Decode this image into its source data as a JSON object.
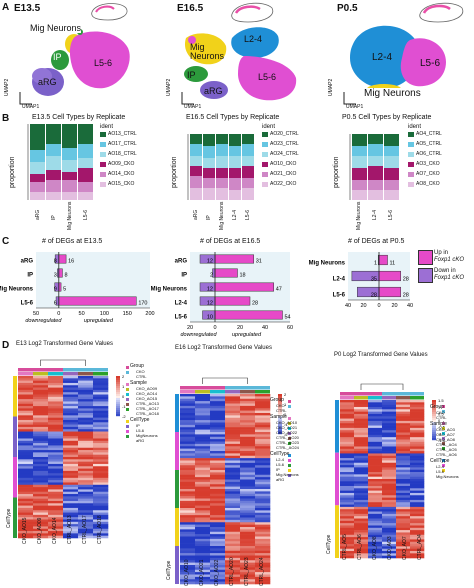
{
  "panel_labels": {
    "a": "A",
    "b": "B",
    "c": "C",
    "d": "D"
  },
  "colors": {
    "aRG": "#7b61c9",
    "IP": "#2c9a3c",
    "L2-4": "#1f8fd6",
    "L5-6": "#e04fd2",
    "Mig": "#f1d21a",
    "mock": "#c9a0e0",
    "CTRL": "#5bb8d9",
    "CKO": "#d74c9b",
    "rep_ctrl_1": "#1a6b3a",
    "rep_ctrl_2": "#66c6e2",
    "rep_ctrl_3": "#9edbe8",
    "rep_cko_1": "#a3176b",
    "rep_cko_2": "#cf87c6",
    "rep_cko_3": "#e3bfe0",
    "bar_pink": "#e64ac8",
    "bar_purple": "#9c6fd4",
    "bar_lightblue": "#e8f3f8"
  },
  "umap": {
    "e135": {
      "title": "E13.5",
      "labels": [
        "Mig Neurons",
        "IP",
        "aRG",
        "L5-6"
      ],
      "axis_y": "UMAP2",
      "axis_x": "UMAP1"
    },
    "e165": {
      "title": "E16.5",
      "labels": [
        "Mig Neurons",
        "L2-4",
        "L5-6",
        "IP",
        "aRG"
      ],
      "axis_y": "UMAP2",
      "axis_x": "UMAP1"
    },
    "p05": {
      "title": "P0.5",
      "labels": [
        "L2-4",
        "L5-6",
        "Mig Neurons"
      ],
      "axis_y": "UMAP2",
      "axis_x": "UMAP1"
    }
  },
  "proportion": {
    "e135": {
      "title": "E13.5 Cell Types by Replicate",
      "ylabel": "proportion",
      "legend_title": "ident",
      "legend": [
        "AO13_CTRL",
        "AO17_CTRL",
        "AO18_CTRL",
        "AO09_CKO",
        "AO14_CKO",
        "AO15_CKO"
      ],
      "categories": [
        "aRG",
        "IP",
        "Mig Neurons",
        "L5-6"
      ]
    },
    "e165": {
      "title": "E16.5 Cell Types by Replicate",
      "ylabel": "proportion",
      "legend_title": "ident",
      "legend": [
        "AO20_CTRL",
        "AO23_CTRL",
        "AO24_CTRL",
        "AO10_CKO",
        "AO21_CKO",
        "AO22_CKO"
      ],
      "categories": [
        "aRG",
        "IP",
        "Mig Neurons",
        "L2-4",
        "L5-6"
      ]
    },
    "p05": {
      "title": "P0.5 Cell Types by Replicate",
      "ylabel": "proportion",
      "legend_title": "ident",
      "legend": [
        "AO4_CTRL",
        "AO5_CTRL",
        "AO6_CTRL",
        "AO3_CKO",
        "AO7_CKO",
        "AO8_CKO"
      ],
      "categories": [
        "Mig Neurons",
        "L2-4",
        "L5-6"
      ]
    }
  },
  "chart_data": [
    {
      "type": "bar",
      "title": "# of DEGs at E13.5",
      "categories": [
        "aRG",
        "IP",
        "Mig Neurons",
        "L5-6"
      ],
      "series": [
        {
          "name": "downregulated",
          "values": [
            8,
            3,
            9,
            6
          ]
        },
        {
          "name": "upregulated",
          "values": [
            16,
            8,
            5,
            170
          ]
        }
      ],
      "xlim": [
        -50,
        200
      ],
      "xticks": [
        "50",
        "0",
        "50",
        "100",
        "150",
        "200"
      ],
      "xlabel_left": "downregulated",
      "xlabel_right": "upregulated"
    },
    {
      "type": "bar",
      "title": "# of DEGs at E16.5",
      "categories": [
        "aRG",
        "IP",
        "Mig Neurons",
        "L2-4",
        "L5-6"
      ],
      "series": [
        {
          "name": "downregulated",
          "values": [
            12,
            2,
            12,
            12,
            10
          ]
        },
        {
          "name": "upregulated",
          "values": [
            31,
            18,
            47,
            28,
            54
          ]
        }
      ],
      "xlim": [
        -20,
        60
      ],
      "xticks": [
        "20",
        "0",
        "20",
        "40",
        "60"
      ],
      "xlabel_left": "downregulated",
      "xlabel_right": "upregulated"
    },
    {
      "type": "bar",
      "title": "# of DEGs at P0.5",
      "categories": [
        "Mig Neurons",
        "L2-4",
        "L5-6"
      ],
      "series": [
        {
          "name": "downregulated",
          "values": [
            1,
            35,
            28
          ]
        },
        {
          "name": "upregulated",
          "values": [
            11,
            28,
            28
          ]
        }
      ],
      "xlim": [
        -40,
        40
      ],
      "xticks": [
        "40",
        "20",
        "0",
        "20",
        "40"
      ]
    }
  ],
  "deg_legend": {
    "up": "Up in",
    "up_gene": "Foxp1 cKO",
    "down": "Down in",
    "down_gene": "Foxp1 cKO"
  },
  "heatmap": {
    "e13": {
      "title": "E13 Log2 Transformed Gene Values",
      "legend": {
        "group": "Group",
        "group_items": [
          "CKO",
          "CTRL"
        ],
        "sample": "Sample",
        "sample_items": [
          "CKO_AO09",
          "CKO_AO14",
          "CKO_AO15",
          "CTRL_AO13",
          "CTRL_AO17",
          "CTRL_AO18"
        ],
        "celltype": "CellType",
        "celltype_items": [
          "IP",
          "L5-6",
          "MigNeurons",
          "aRG"
        ],
        "scale": [
          "2",
          "1",
          "0",
          "-1",
          "-2"
        ]
      },
      "cols": [
        "CKO_AO15",
        "CKO_AO09",
        "CKO_AO14",
        "CTRL_AO13",
        "CTRL_AO17",
        "CTRL_AO18"
      ],
      "row_label": "CellType"
    },
    "e16": {
      "title": "E16 Log2 Transformed Gene Values",
      "legend": {
        "group": "Group",
        "group_items": [
          "CKO",
          "CTRL"
        ],
        "sample": "Sample",
        "sample_items": [
          "CKO_AO10",
          "CKO_AO21",
          "CKO_AO22",
          "CTRL_AO20",
          "CTRL_AO23",
          "CTRL_AO24"
        ],
        "celltype": "CellType",
        "celltype_items": [
          "L2-4",
          "L5-6",
          "IP",
          "Mig.Neurons",
          "aRG"
        ],
        "scale": [
          "2",
          "1",
          "0",
          "-1",
          "-2"
        ]
      },
      "cols": [
        "CKO_AO10",
        "CKO_AO21",
        "CKO_AO22",
        "CTRL_AO20",
        "CTRL_AO23",
        "CTRL_AO24"
      ],
      "row_label": "CellType"
    },
    "p0": {
      "title": "P0 Log2 Transformed Gene Values",
      "legend": {
        "group": "Group",
        "group_items": [
          "CKO",
          "CTRL"
        ],
        "sample": "Sample",
        "sample_items": [
          "CKO_AO3",
          "CKO_AO7",
          "CKO_AO8",
          "CTRL_AO4",
          "CTRL_AO5",
          "CTRL_AO6"
        ],
        "celltype": "CellType",
        "celltype_items": [
          "L2-4",
          "L5-6",
          "Mig.Neurons"
        ],
        "scale": [
          "1.5",
          "1",
          "0.5",
          "0",
          "-0.5",
          "-1",
          "-1.5"
        ]
      },
      "cols": [
        "CTRL_AO5",
        "CTRL_AO6",
        "CKO_AO8",
        "CKO_AO3",
        "CKO_AO7",
        "CTRL_AO4"
      ],
      "row_label": "CellType"
    }
  }
}
